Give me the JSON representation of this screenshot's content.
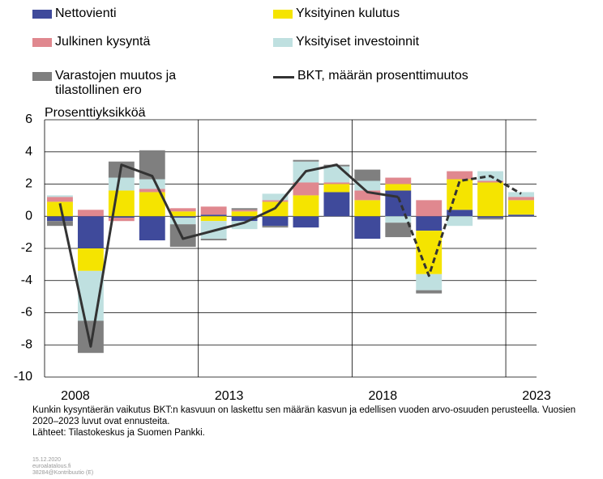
{
  "chart_data": {
    "type": "stacked_bar_line",
    "y_label": "Prosenttiyksikköä",
    "categories": [
      "2008",
      null,
      null,
      null,
      null,
      "2013",
      null,
      null,
      null,
      null,
      "2018",
      null,
      null,
      null,
      null,
      "2023"
    ],
    "series": [
      {
        "name": "Nettovienti",
        "color": "#3f4a9b",
        "values": [
          -0.3,
          -2.0,
          -0.1,
          -1.5,
          -0.1,
          0.1,
          -0.3,
          -0.6,
          -0.7,
          1.5,
          -1.4,
          1.6,
          -0.9,
          0.4,
          -0.1,
          0.1
        ]
      },
      {
        "name": "Yksityinen kulutus",
        "color": "#f5e400",
        "values": [
          0.9,
          -1.4,
          1.6,
          1.5,
          0.3,
          -0.3,
          0.3,
          0.9,
          1.3,
          0.5,
          1.0,
          0.4,
          -2.7,
          1.9,
          2.1,
          0.9
        ]
      },
      {
        "name": "Julkinen kysyntä",
        "color": "#e0888f",
        "values": [
          0.3,
          0.4,
          -0.2,
          0.2,
          0.2,
          0.5,
          0.1,
          0.1,
          0.8,
          0.1,
          0.6,
          0.4,
          1.0,
          0.5,
          0.1,
          0.2
        ]
      },
      {
        "name": "Yksityiset investoinnit",
        "color": "#bfe0e0",
        "values": [
          0.1,
          -3.1,
          0.8,
          0.6,
          -0.4,
          -1.1,
          -0.5,
          0.4,
          1.3,
          1.0,
          0.6,
          -0.4,
          -1.0,
          -0.6,
          0.6,
          0.3
        ]
      },
      {
        "name": "Varastojen muutos ja tilastollinen ero",
        "color": "#7f7f7f",
        "values": [
          -0.3,
          -2.0,
          1.0,
          1.8,
          -1.4,
          -0.1,
          0.1,
          -0.1,
          0.1,
          0.1,
          0.7,
          -0.9,
          -0.2,
          0.0,
          -0.1,
          0.0
        ]
      },
      {
        "name": "BKT, määrän prosenttimuutos",
        "color": "#333333",
        "kind": "line",
        "dashed_from": 11,
        "values": [
          0.8,
          -8.1,
          3.2,
          2.5,
          -1.4,
          -0.9,
          -0.4,
          0.5,
          2.8,
          3.2,
          1.5,
          1.2,
          -3.7,
          2.2,
          2.5,
          1.4
        ]
      }
    ],
    "ylim": [
      -10,
      6
    ],
    "yticks": [
      -10,
      -8,
      -6,
      -4,
      -2,
      0,
      2,
      4,
      6
    ],
    "grid": true,
    "footnote": [
      "Kunkin kysyntäerän vaikutus BKT:n kasvuun on laskettu sen määrän kasvun ja edellisen vuoden arvo-osuuden perusteella. Vuosien 2020–2023 luvut ovat ennusteita.",
      "Lähteet: Tilastokeskus ja Suomen Pankki."
    ],
    "meta": [
      "15.12.2020",
      "euroalatalous.fi",
      "38284@Kontribuutio (E)"
    ]
  }
}
